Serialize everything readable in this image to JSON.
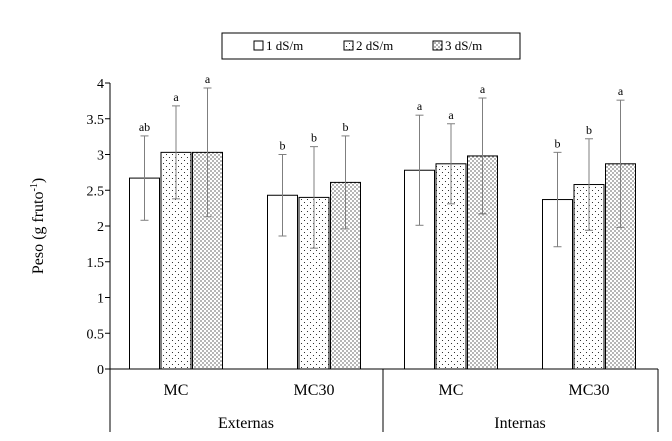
{
  "chart_data": {
    "type": "bar",
    "ylabel": "Peso (g fruto",
    "ylabel_sup": "-1",
    "ylabel_close": ")",
    "ylim": [
      0,
      4
    ],
    "yticks": [
      "0",
      "0.5",
      "1",
      "1.5",
      "2",
      "2.5",
      "3",
      "3.5",
      "4"
    ],
    "legend_position": "top",
    "grid": false,
    "groups": [
      {
        "label": "Externas",
        "categories": [
          "MC",
          "MC30"
        ]
      },
      {
        "label": "Internas",
        "categories": [
          "MC",
          "MC30"
        ]
      }
    ],
    "categories": [
      "MC",
      "MC30",
      "MC",
      "MC30"
    ],
    "series": [
      {
        "name": "1 dS/m",
        "pattern": "white",
        "values": [
          2.67,
          2.43,
          2.78,
          2.37
        ],
        "error": [
          0.59,
          0.57,
          0.77,
          0.66
        ],
        "letters": [
          "ab",
          "b",
          "a",
          "b"
        ]
      },
      {
        "name": "2 dS/m",
        "pattern": "sparse-dots",
        "values": [
          3.03,
          2.4,
          2.87,
          2.58
        ],
        "error": [
          0.65,
          0.71,
          0.56,
          0.64
        ],
        "letters": [
          "a",
          "b",
          "a",
          "b"
        ]
      },
      {
        "name": "3 dS/m",
        "pattern": "dense-dots",
        "values": [
          3.03,
          2.61,
          2.98,
          2.87
        ],
        "error": [
          0.9,
          0.65,
          0.81,
          0.89
        ],
        "letters": [
          "a",
          "b",
          "a",
          "a"
        ]
      }
    ],
    "colors": {
      "bar_fill": "#ffffff",
      "bar_stroke": "#000000",
      "dot": "#000000",
      "error_bar": "#7f7f7f",
      "axis": "#000000",
      "letter": "#595959"
    }
  }
}
